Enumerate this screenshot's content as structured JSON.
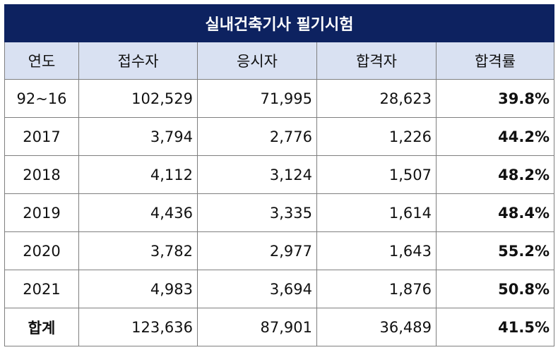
{
  "title": "실내건축기사 필기시험",
  "columns": [
    "연도",
    "접수자",
    "응시자",
    "합격자",
    "합격률"
  ],
  "rows": [
    {
      "year": "92~16",
      "applicants": "102,529",
      "examinees": "71,995",
      "passers": "28,623",
      "rate": "39.8%"
    },
    {
      "year": "2017",
      "applicants": "3,794",
      "examinees": "2,776",
      "passers": "1,226",
      "rate": "44.2%"
    },
    {
      "year": "2018",
      "applicants": "4,112",
      "examinees": "3,124",
      "passers": "1,507",
      "rate": "48.2%"
    },
    {
      "year": "2019",
      "applicants": "4,436",
      "examinees": "3,335",
      "passers": "1,614",
      "rate": "48.4%"
    },
    {
      "year": "2020",
      "applicants": "3,782",
      "examinees": "2,977",
      "passers": "1,643",
      "rate": "55.2%"
    },
    {
      "year": "2021",
      "applicants": "4,983",
      "examinees": "3,694",
      "passers": "1,876",
      "rate": "50.8%"
    }
  ],
  "total": {
    "label": "합계",
    "applicants": "123,636",
    "examinees": "87,901",
    "passers": "36,489",
    "rate": "41.5%"
  },
  "colors": {
    "title_bg": "#0d2260",
    "header_bg": "#d9e1f2",
    "border": "#7f7f7f"
  }
}
